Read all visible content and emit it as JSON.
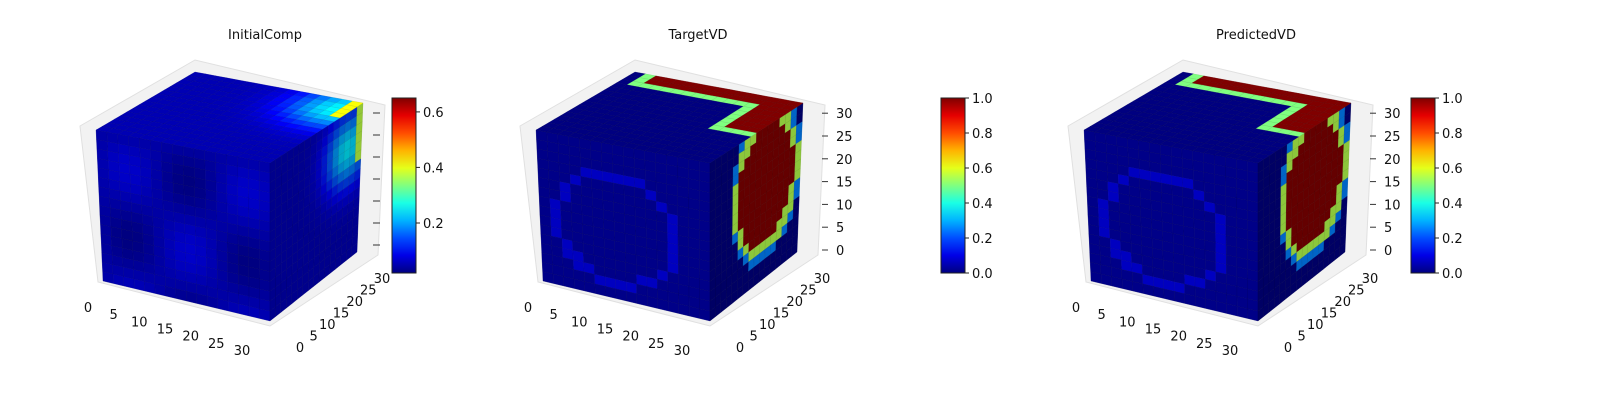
{
  "figure": {
    "background": "#ffffff",
    "colormap": "jet"
  },
  "chart_data": [
    {
      "type": "heatmap",
      "subtype": "3d-voxel",
      "title": "InitialComp",
      "x_ticks": [
        "0",
        "5",
        "10",
        "15",
        "20",
        "25",
        "30"
      ],
      "y_ticks": [
        "0",
        "5",
        "10",
        "15",
        "20",
        "25",
        "30"
      ],
      "z_ticks": [],
      "colorbar_ticks": [
        "0.2",
        "0.4",
        "0.6"
      ],
      "colorbar_range": [
        0.02,
        0.65
      ],
      "pattern": "diffuse",
      "hotspot_value": 0.62,
      "background_value": 0.05
    },
    {
      "type": "heatmap",
      "subtype": "3d-voxel",
      "title": "TargetVD",
      "x_ticks": [
        "0",
        "5",
        "10",
        "15",
        "20",
        "25",
        "30"
      ],
      "y_ticks": [
        "0",
        "5",
        "10",
        "15",
        "20",
        "25",
        "30"
      ],
      "z_ticks": [
        "0",
        "5",
        "10",
        "15",
        "20",
        "25",
        "30"
      ],
      "colorbar_ticks": [
        "0.0",
        "0.2",
        "0.4",
        "0.6",
        "0.8",
        "1.0"
      ],
      "colorbar_range": [
        0.0,
        1.0
      ],
      "pattern": "sharp",
      "hotspot_value": 1.0,
      "background_value": 0.0
    },
    {
      "type": "heatmap",
      "subtype": "3d-voxel",
      "title": "PredictedVD",
      "x_ticks": [
        "0",
        "5",
        "10",
        "15",
        "20",
        "25",
        "30"
      ],
      "y_ticks": [
        "0",
        "5",
        "10",
        "15",
        "20",
        "25",
        "30"
      ],
      "z_ticks": [
        "0",
        "5",
        "10",
        "15",
        "20",
        "25",
        "30"
      ],
      "colorbar_ticks": [
        "0.0",
        "0.2",
        "0.4",
        "0.6",
        "0.8",
        "1.0"
      ],
      "colorbar_range": [
        0.0,
        1.0
      ],
      "pattern": "sharp",
      "hotspot_value": 1.0,
      "background_value": 0.0
    }
  ]
}
